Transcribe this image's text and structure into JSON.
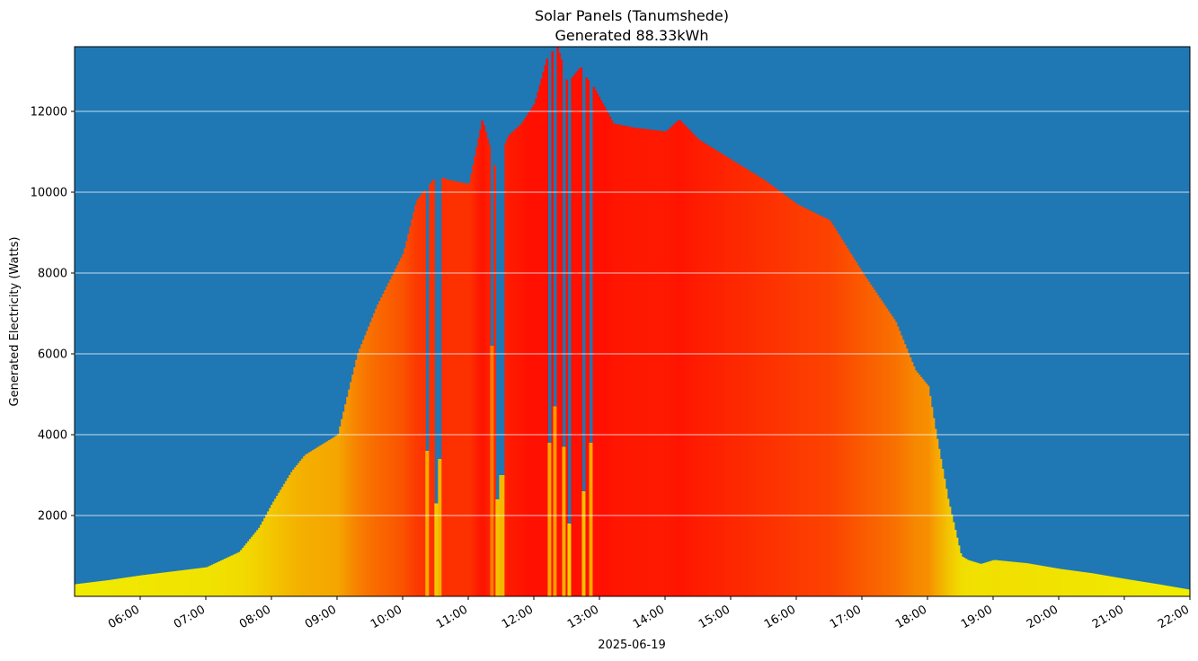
{
  "chart_data": {
    "type": "bar",
    "title": "Solar Panels (Tanumshede)",
    "subtitle": "Generated 88.33kWh",
    "xlabel": "2025-06-19",
    "ylabel": "Generated Electricity (Watts)",
    "xlim_hours": [
      5.0,
      22.0
    ],
    "ylim": [
      0,
      13600
    ],
    "y_ticks": [
      2000,
      4000,
      6000,
      8000,
      10000,
      12000
    ],
    "x_ticks": [
      "06:00",
      "07:00",
      "08:00",
      "09:00",
      "10:00",
      "11:00",
      "12:00",
      "13:00",
      "14:00",
      "15:00",
      "16:00",
      "17:00",
      "18:00",
      "19:00",
      "20:00",
      "21:00",
      "22:00"
    ],
    "grid": "horizontal",
    "colors": {
      "background": "#1f77b4",
      "grid": "#ffffff",
      "low": "#f0f000",
      "mid": "#f8a000",
      "high": "#ff1000"
    },
    "profile_hours": [
      5.0,
      5.5,
      6.0,
      6.5,
      7.0,
      7.5,
      7.8,
      8.0,
      8.3,
      8.5,
      9.0,
      9.3,
      9.6,
      10.0,
      10.2,
      10.5,
      10.7,
      11.0,
      11.2,
      11.4,
      11.6,
      11.8,
      12.0,
      12.2,
      12.35,
      12.5,
      12.7,
      12.8,
      12.9,
      13.2,
      13.5,
      14.0,
      14.2,
      14.5,
      15.0,
      15.5,
      16.0,
      16.5,
      17.0,
      17.5,
      17.8,
      18.0,
      18.1,
      18.3,
      18.5,
      18.6,
      18.8,
      19.0,
      19.5,
      20.0,
      20.5,
      21.0,
      21.5,
      22.0
    ],
    "profile_watts": [
      300,
      400,
      520,
      620,
      720,
      1100,
      1700,
      2300,
      3100,
      3500,
      4000,
      6000,
      7200,
      8500,
      9800,
      10400,
      10300,
      10200,
      11800,
      10600,
      11400,
      11700,
      12200,
      13400,
      13600,
      12700,
      13100,
      12800,
      12600,
      11700,
      11600,
      11500,
      11800,
      11300,
      10800,
      10300,
      9700,
      9300,
      8000,
      6800,
      5600,
      5200,
      4200,
      2400,
      1000,
      900,
      800,
      900,
      820,
      680,
      570,
      430,
      300,
      160
    ],
    "dips": [
      {
        "hour": 10.37,
        "watts": 3600
      },
      {
        "hour": 10.49,
        "watts": 2300
      },
      {
        "hour": 10.55,
        "watts": 3400
      },
      {
        "hour": 11.35,
        "watts": 6200
      },
      {
        "hour": 11.42,
        "watts": 2400
      },
      {
        "hour": 11.5,
        "watts": 3000
      },
      {
        "hour": 12.22,
        "watts": 3800
      },
      {
        "hour": 12.3,
        "watts": 4700
      },
      {
        "hour": 12.45,
        "watts": 3700
      },
      {
        "hour": 12.52,
        "watts": 1800
      },
      {
        "hour": 12.75,
        "watts": 2600
      },
      {
        "hour": 12.85,
        "watts": 3800
      }
    ]
  }
}
